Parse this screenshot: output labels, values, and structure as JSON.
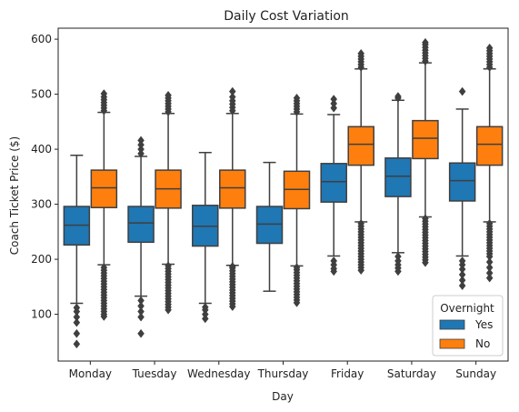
{
  "chart_data": {
    "type": "box",
    "title": "Daily Cost Variation",
    "xlabel": "Day",
    "ylabel": "Coach Ticket Price ($)",
    "ylim": [
      15,
      620
    ],
    "yticks": [
      100,
      200,
      300,
      400,
      500,
      600
    ],
    "categories": [
      "Monday",
      "Tuesday",
      "Wednesday",
      "Thursday",
      "Friday",
      "Saturday",
      "Sunday"
    ],
    "legend": {
      "title": "Overnight",
      "position": "lower-right"
    },
    "series": [
      {
        "name": "Yes",
        "color": "#1f77b4",
        "boxes": [
          {
            "whislo": 120,
            "q1": 226,
            "med": 262,
            "q3": 296,
            "whishi": 389,
            "fliers": [
              46,
              65,
              85,
              95,
              105,
              112
            ]
          },
          {
            "whislo": 133,
            "q1": 231,
            "med": 266,
            "q3": 296,
            "whishi": 387,
            "fliers": [
              65,
              95,
              105,
              115,
              125,
              392,
              400,
              408,
              416
            ]
          },
          {
            "whislo": 120,
            "q1": 224,
            "med": 260,
            "q3": 298,
            "whishi": 394,
            "fliers": [
              92,
              100,
              108,
              113
            ]
          },
          {
            "whislo": 142,
            "q1": 229,
            "med": 264,
            "q3": 296,
            "whishi": 376,
            "fliers": []
          },
          {
            "whislo": 206,
            "q1": 304,
            "med": 341,
            "q3": 374,
            "whishi": 463,
            "fliers": [
              178,
              183,
              190,
              197,
              475,
              483,
              491
            ]
          },
          {
            "whislo": 212,
            "q1": 314,
            "med": 351,
            "q3": 384,
            "whishi": 489,
            "fliers": [
              178,
              184,
              190,
              197,
              205,
              493,
              496
            ]
          },
          {
            "whislo": 206,
            "q1": 306,
            "med": 343,
            "q3": 375,
            "whishi": 473,
            "fliers": [
              152,
              162,
              172,
              182,
              190,
              197,
              505
            ]
          }
        ]
      },
      {
        "name": "No",
        "color": "#ff7f0e",
        "boxes": [
          {
            "whislo": 190,
            "q1": 294,
            "med": 330,
            "q3": 362,
            "whishi": 467,
            "fliers": [
              96,
              100,
              105,
              110,
              115,
              120,
              125,
              130,
              135,
              140,
              145,
              150,
              155,
              160,
              165,
              170,
              175,
              180,
              185,
              470,
              475,
              480,
              485,
              490,
              495,
              501
            ]
          },
          {
            "whislo": 191,
            "q1": 293,
            "med": 328,
            "q3": 362,
            "whishi": 465,
            "fliers": [
              108,
              113,
              118,
              123,
              128,
              133,
              138,
              143,
              148,
              153,
              158,
              163,
              168,
              173,
              178,
              183,
              188,
              468,
              473,
              478,
              483,
              488,
              493,
              498
            ]
          },
          {
            "whislo": 189,
            "q1": 293,
            "med": 330,
            "q3": 362,
            "whishi": 465,
            "fliers": [
              114,
              119,
              124,
              129,
              134,
              139,
              144,
              149,
              154,
              159,
              164,
              169,
              174,
              179,
              184,
              187,
              470,
              476,
              482,
              488,
              495,
              505
            ]
          },
          {
            "whislo": 188,
            "q1": 292,
            "med": 327,
            "q3": 360,
            "whishi": 464,
            "fliers": [
              121,
              126,
              131,
              136,
              141,
              146,
              151,
              156,
              161,
              166,
              171,
              176,
              181,
              185,
              468,
              473,
              478,
              483,
              488,
              493
            ]
          },
          {
            "whislo": 268,
            "q1": 371,
            "med": 409,
            "q3": 441,
            "whishi": 546,
            "fliers": [
              180,
              185,
              190,
              195,
              200,
              205,
              210,
              215,
              220,
              225,
              230,
              235,
              240,
              245,
              250,
              255,
              260,
              265,
              549,
              554,
              559,
              564,
              569,
              574
            ]
          },
          {
            "whislo": 277,
            "q1": 383,
            "med": 420,
            "q3": 452,
            "whishi": 557,
            "fliers": [
              194,
              199,
              204,
              209,
              214,
              219,
              224,
              229,
              234,
              239,
              244,
              249,
              254,
              259,
              264,
              269,
              274,
              560,
              565,
              570,
              575,
              580,
              585,
              590,
              594
            ]
          },
          {
            "whislo": 268,
            "q1": 371,
            "med": 409,
            "q3": 441,
            "whishi": 546,
            "fliers": [
              166,
              175,
              185,
              195,
              205,
              210,
              215,
              220,
              225,
              230,
              235,
              240,
              245,
              250,
              255,
              260,
              265,
              549,
              554,
              559,
              564,
              569,
              574,
              579,
              584
            ]
          }
        ]
      }
    ]
  }
}
